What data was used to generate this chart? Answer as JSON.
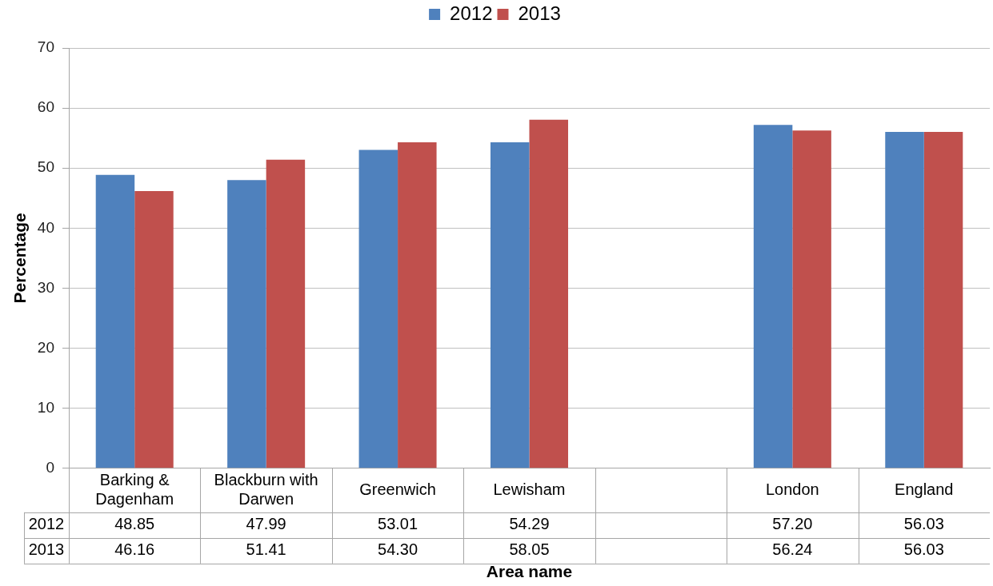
{
  "chart_data": {
    "type": "bar",
    "xlabel": "Area name",
    "ylabel": "Percentage",
    "categories": [
      "Barking & Dagenham",
      "Blackburn with Darwen",
      "Greenwich",
      "Lewisham",
      null,
      "London",
      "England"
    ],
    "series": [
      {
        "name": "2012",
        "color": "#4f81bd",
        "values": [
          48.85,
          47.99,
          53.01,
          54.29,
          null,
          57.2,
          56.03
        ],
        "value_labels": [
          "48.85",
          "47.99",
          "53.01",
          "54.29",
          null,
          "57.20",
          "56.03"
        ]
      },
      {
        "name": "2013",
        "color": "#c0504d",
        "values": [
          46.16,
          51.41,
          54.3,
          58.05,
          null,
          56.24,
          56.03
        ],
        "value_labels": [
          "46.16",
          "51.41",
          "54.30",
          "58.05",
          null,
          "56.24",
          "56.03"
        ]
      }
    ],
    "ylim": [
      0,
      70
    ],
    "yticks": [
      0,
      10,
      20,
      30,
      40,
      50,
      60,
      70
    ],
    "grid": "y",
    "legend": "top"
  }
}
